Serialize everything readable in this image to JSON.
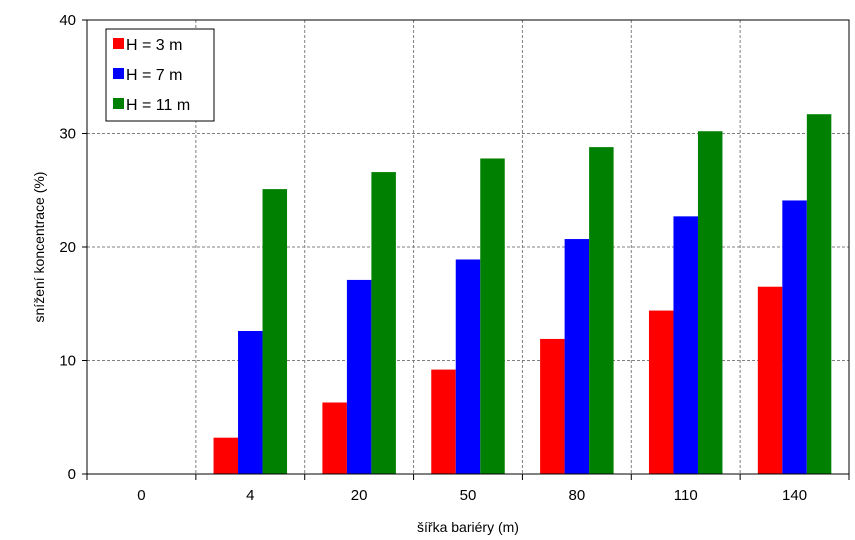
{
  "chart_data": {
    "type": "bar",
    "title": "",
    "xlabel": "šířka bariéry (m)",
    "ylabel": "snížení koncentrace (%)",
    "ylim": [
      0,
      40
    ],
    "yticks": [
      0,
      10,
      20,
      30,
      40
    ],
    "categories": [
      "0",
      "4",
      "20",
      "50",
      "80",
      "110",
      "140"
    ],
    "grid": "dashed, both axes",
    "legend_position": "top-left",
    "series": [
      {
        "name": "H = 3 m",
        "color": "#ff0000",
        "values": [
          0,
          3.2,
          6.3,
          9.2,
          11.9,
          14.4,
          16.5
        ]
      },
      {
        "name": "H = 7 m",
        "color": "#0000ff",
        "values": [
          0,
          12.6,
          17.1,
          18.9,
          20.7,
          22.7,
          24.1
        ]
      },
      {
        "name": "H = 11 m",
        "color": "#008000",
        "values": [
          0,
          25.1,
          26.6,
          27.8,
          28.8,
          30.2,
          31.7
        ]
      }
    ]
  }
}
